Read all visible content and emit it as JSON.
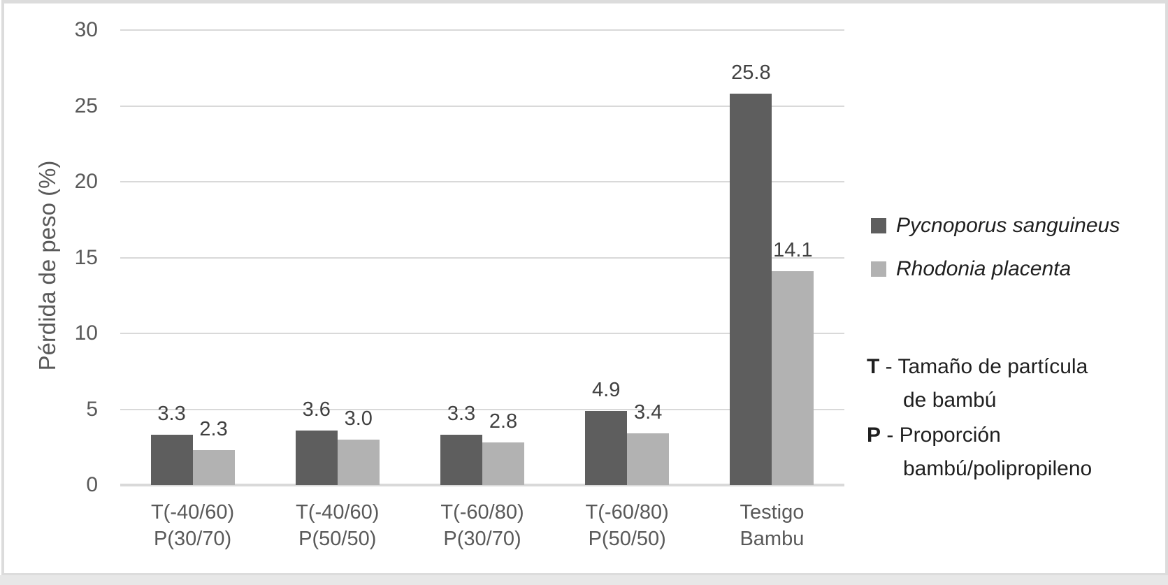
{
  "chart_data": {
    "type": "bar",
    "title": "",
    "xlabel": "",
    "ylabel": "Pérdida de peso (%)",
    "ylim": [
      0,
      30
    ],
    "yticks": [
      0,
      5,
      10,
      15,
      20,
      25,
      30
    ],
    "grid": true,
    "legend_position": "right",
    "categories": [
      [
        "T(-40/60)",
        "P(30/70)"
      ],
      [
        "T(-40/60)",
        "P(50/50)"
      ],
      [
        "T(-60/80)",
        "P(30/70)"
      ],
      [
        "T(-60/80)",
        "P(50/50)"
      ],
      [
        "Testigo",
        "Bambu"
      ]
    ],
    "series": [
      {
        "name": "Pycnoporus sanguineus",
        "color": "#5e5e5e",
        "values": [
          3.3,
          3.6,
          3.3,
          4.9,
          25.8
        ],
        "labels": [
          "3.3",
          "3.6",
          "3.3",
          "4.9",
          "25.8"
        ]
      },
      {
        "name": "Rhodonia placenta",
        "color": "#b2b2b2",
        "values": [
          2.3,
          3.0,
          2.8,
          3.4,
          14.1
        ],
        "labels": [
          "2.3",
          "3.0",
          "2.8",
          "3.4",
          "14.1"
        ]
      }
    ],
    "annotation_lines": [
      {
        "bold": "T",
        "text": " - Tamaño de partícula",
        "indent": false
      },
      {
        "bold": "",
        "text": "de bambú",
        "indent": true
      },
      {
        "bold": "P",
        "text": " - Proporción",
        "indent": false
      },
      {
        "bold": "",
        "text": "bambú/polipropileno",
        "indent": true
      }
    ],
    "colors": {
      "gridline": "#d9d9d9",
      "axis_text": "#595959",
      "data_label": "#404040",
      "legend_text": "#1f1f1f"
    }
  }
}
